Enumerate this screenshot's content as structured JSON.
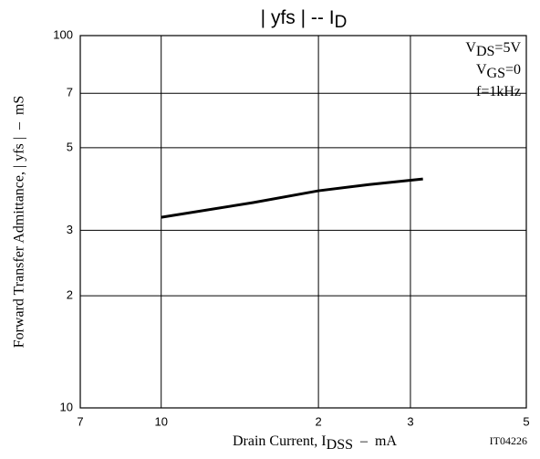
{
  "chart_data": {
    "type": "line",
    "title": [
      "| yfs |  --  I",
      "D"
    ],
    "x_label": [
      "Drain Current, I",
      "DSS",
      "  –  mA"
    ],
    "y_label": "Forward Transfer Admittance, | yfs |  –  mS",
    "annotations": [
      [
        "V",
        "DS",
        "=5V"
      ],
      [
        "V",
        "GS",
        "=0"
      ],
      [
        "f=1kHz"
      ]
    ],
    "figure_code": "IT04226",
    "x": [
      10,
      15,
      20,
      25,
      31.7
    ],
    "values": [
      32.5,
      35.6,
      38.3,
      39.8,
      41.2
    ],
    "color": "#000000",
    "log_x": true,
    "log_y": true,
    "grid": true,
    "xlim": [
      7,
      50
    ],
    "ylim": [
      10,
      100
    ],
    "xticks": [
      7,
      10,
      {
        "value": 20,
        "label": "2"
      },
      {
        "value": 30,
        "label": "3"
      },
      {
        "value": 50,
        "label": "5"
      }
    ],
    "yticks": [
      10,
      {
        "value": 20,
        "label": "2"
      },
      {
        "value": 30,
        "label": "3"
      },
      {
        "value": 50,
        "label": "5"
      },
      {
        "value": 70,
        "label": "7"
      },
      100
    ]
  }
}
